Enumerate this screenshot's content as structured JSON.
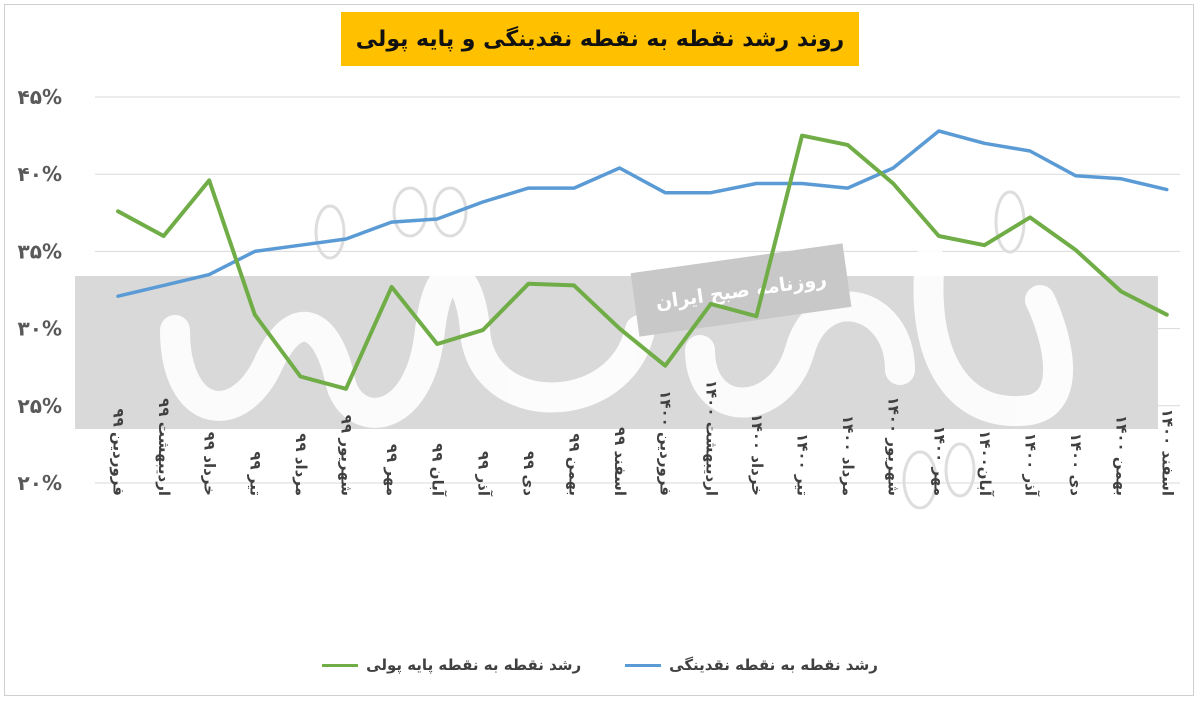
{
  "chart_data": {
    "type": "line",
    "title": "روند رشد نقطه به نقطه نقدینگی و پایه پولی",
    "categories": [
      "فروردین ۹۹",
      "اردیبهشت ۹۹",
      "خرداد ۹۹",
      "تیر ۹۹",
      "مرداد ۹۹",
      "شهریور ۹۹",
      "مهر ۹۹",
      "آبان ۹۹",
      "آذر ۹۹",
      "دی ۹۹",
      "بهمن ۹۹",
      "اسفند ۹۹",
      "فروردین ۱۴۰۰",
      "اردیبهشت ۱۴۰۰",
      "خرداد ۱۴۰۰",
      "تیر ۱۴۰۰",
      "مرداد ۱۴۰۰",
      "شهریور ۱۴۰۰",
      "مهر ۱۴۰۰",
      "آبان۱۴۰۰",
      "آذر ۱۴۰۰",
      "دی ۱۴۰۰",
      "بهمن ۱۴۰۰",
      "اسفند ۱۴۰۰"
    ],
    "series": [
      {
        "name": "رشد نقطه به نقطه نقدینگی",
        "color": "#5b9bd5",
        "values": [
          32.1,
          32.8,
          33.5,
          35.0,
          35.4,
          35.8,
          36.9,
          37.1,
          38.2,
          39.1,
          39.1,
          40.4,
          38.8,
          38.8,
          39.4,
          39.4,
          39.1,
          40.4,
          42.8,
          42.0,
          41.5,
          39.9,
          39.7,
          39.0
        ],
        "line_width": 3.5
      },
      {
        "name": "رشد نقطه به نقطه پایه پولی",
        "color": "#70ad47",
        "values": [
          37.6,
          36.0,
          39.6,
          30.9,
          26.9,
          26.1,
          32.7,
          29.0,
          29.9,
          32.9,
          32.8,
          30.0,
          27.6,
          31.6,
          30.8,
          42.5,
          41.9,
          39.4,
          36.0,
          35.4,
          37.2,
          35.1,
          32.4,
          30.9
        ],
        "line_width": 4
      }
    ],
    "y_ticks": [
      "۴۵%",
      "۴۰%",
      "۳۵%",
      "۳۰%",
      "۲۵%",
      "۲۰%"
    ],
    "y_tick_values": [
      45,
      40,
      35,
      30,
      25,
      20
    ],
    "ylim": [
      20,
      45
    ],
    "grid": true,
    "legend_position": "bottom",
    "watermark_text": "روزنامه صبح ایران",
    "watermark_logo_text": "دنیای اقتصاد"
  }
}
